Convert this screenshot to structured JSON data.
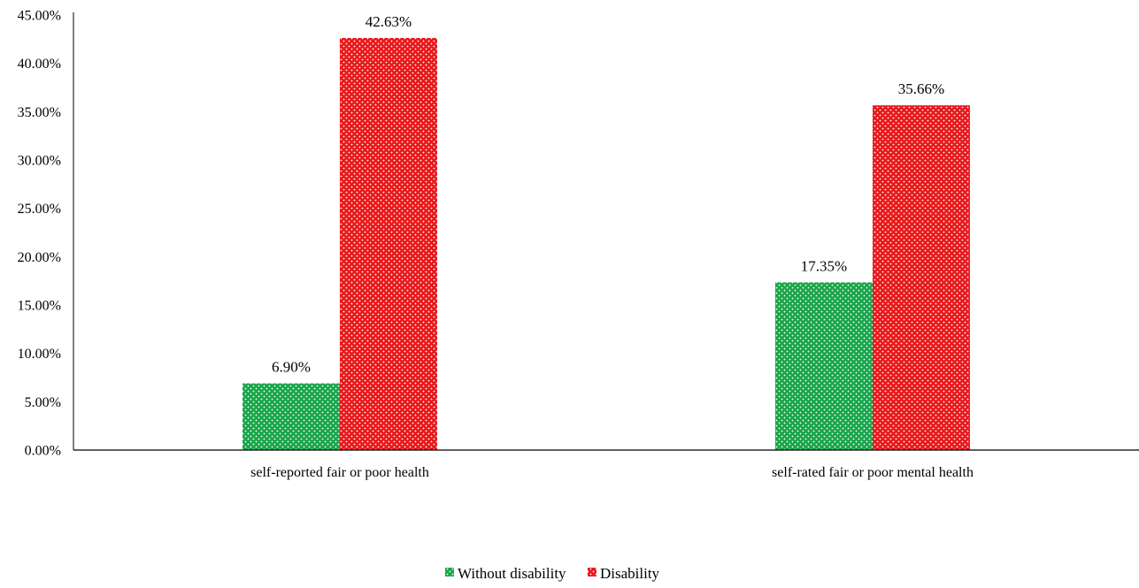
{
  "chart_data": {
    "type": "bar",
    "title": "",
    "xlabel": "",
    "ylabel": "",
    "categories": [
      "self-reported fair or poor health",
      "self-rated fair or poor mental health"
    ],
    "series": [
      {
        "name": "Without disability",
        "values": [
          6.9,
          17.35
        ],
        "labels": [
          "6.90%",
          "17.35%"
        ],
        "color": "#1aa54a",
        "pattern": "dotted"
      },
      {
        "name": "Disability",
        "values": [
          42.63,
          35.66
        ],
        "labels": [
          "42.63%",
          "35.66%"
        ],
        "color": "#e8191c",
        "pattern": "dotted"
      }
    ],
    "ylim": [
      0,
      45
    ],
    "yticks": [
      0,
      5,
      10,
      15,
      20,
      25,
      30,
      35,
      40,
      45
    ],
    "ytick_labels": [
      "0.00%",
      "5.00%",
      "10.00%",
      "15.00%",
      "20.00%",
      "25.00%",
      "30.00%",
      "35.00%",
      "40.00%",
      "45.00%"
    ],
    "grid": false,
    "legend": {
      "position": "bottom-center",
      "entries": [
        "Without disability",
        "Disability"
      ]
    }
  }
}
